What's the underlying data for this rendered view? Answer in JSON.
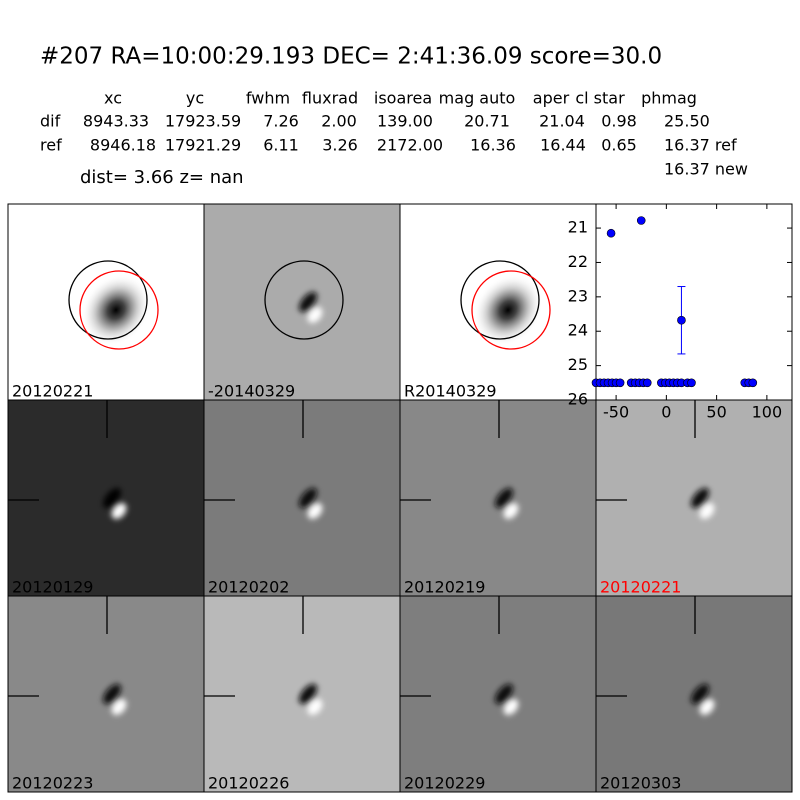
{
  "header": {
    "title": "#207   RA=10:00:29.193 DEC= 2:41:36.09       score=30.0"
  },
  "table": {
    "columns": [
      "xc",
      "yc",
      "fwhm",
      "fluxrad",
      "isoarea",
      "mag auto",
      "aper",
      "cl star",
      "phmag"
    ],
    "rows": [
      [
        "dif",
        "8943.33",
        "17923.59",
        "7.26",
        "2.00",
        "139.00",
        "20.71",
        "21.04",
        "0.98",
        "25.50"
      ],
      [
        "ref",
        "8946.18",
        "17921.29",
        "6.11",
        "3.26",
        "2172.00",
        "16.36",
        "16.44",
        "0.65",
        "16.37 ref"
      ]
    ],
    "extra": "16.37 new"
  },
  "summary": "dist=  3.66      z=   nan",
  "panels": [
    {
      "label": "20120221"
    },
    {
      "label": "-20140329"
    },
    {
      "label": "R20140329"
    },
    {
      "label": "20120129"
    },
    {
      "label": "20120202"
    },
    {
      "label": "20120219"
    },
    {
      "label": "20120221",
      "label_color": "#ff0000"
    },
    {
      "label": "20120223"
    },
    {
      "label": "20120226"
    },
    {
      "label": "20120229"
    },
    {
      "label": "20120303"
    }
  ],
  "chart_data": {
    "type": "scatter",
    "color": "#0000ff",
    "x": [
      -70,
      -66,
      -62,
      -58,
      -54,
      -50,
      -46,
      -55,
      -35,
      -31,
      -27,
      -23,
      -19,
      -25,
      -5,
      -1,
      3,
      7,
      11,
      15,
      15,
      21,
      25,
      78,
      82,
      86
    ],
    "values": [
      25.5,
      25.5,
      25.5,
      25.5,
      25.5,
      25.5,
      25.5,
      21.15,
      25.5,
      25.5,
      25.5,
      25.5,
      25.5,
      20.78,
      25.5,
      25.5,
      25.5,
      25.5,
      25.5,
      25.5,
      23.68,
      25.5,
      25.5,
      25.5,
      25.5,
      25.5
    ],
    "errors": [
      null,
      null,
      null,
      null,
      null,
      null,
      null,
      null,
      null,
      null,
      null,
      null,
      null,
      null,
      null,
      null,
      null,
      null,
      null,
      null,
      0.98,
      null,
      null,
      null,
      null,
      null
    ],
    "xlim": [
      -70,
      125
    ],
    "xticks": [
      -50,
      0,
      50,
      100
    ],
    "ylim": [
      26,
      20.3
    ],
    "yticks": [
      21,
      22,
      23,
      24,
      25,
      26
    ]
  }
}
